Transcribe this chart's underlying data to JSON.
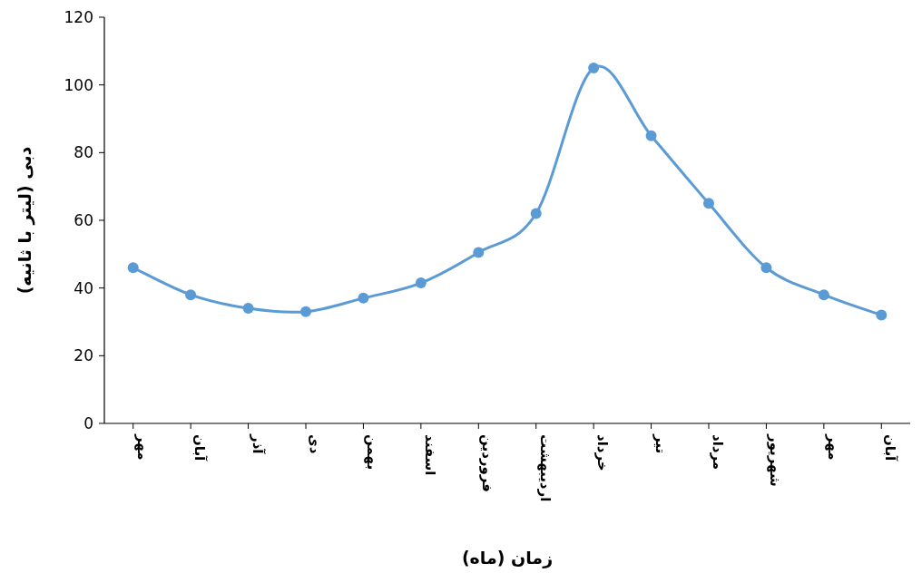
{
  "chart_data": {
    "type": "line",
    "xlabel": "زمان (ماه)",
    "ylabel": "دبی (لیتر با ثانیه)",
    "categories": [
      "مهر",
      "آبان",
      "آذر",
      "دی",
      "بهمن",
      "اسفند",
      "فروردین",
      "اردیبهشت",
      "خرداد",
      "تیر",
      "مرداد",
      "شهریور",
      "مهر",
      "آبان"
    ],
    "series": [
      {
        "color": "#5b9bd5",
        "values": [
          46,
          38,
          34,
          33,
          37,
          41.5,
          50.5,
          62,
          105,
          85,
          65,
          46,
          38,
          32
        ]
      }
    ],
    "marker": "circle",
    "line_style": "solid",
    "ylim": [
      0,
      120
    ],
    "yticks": [
      0,
      20,
      40,
      60,
      80,
      100,
      120
    ]
  }
}
